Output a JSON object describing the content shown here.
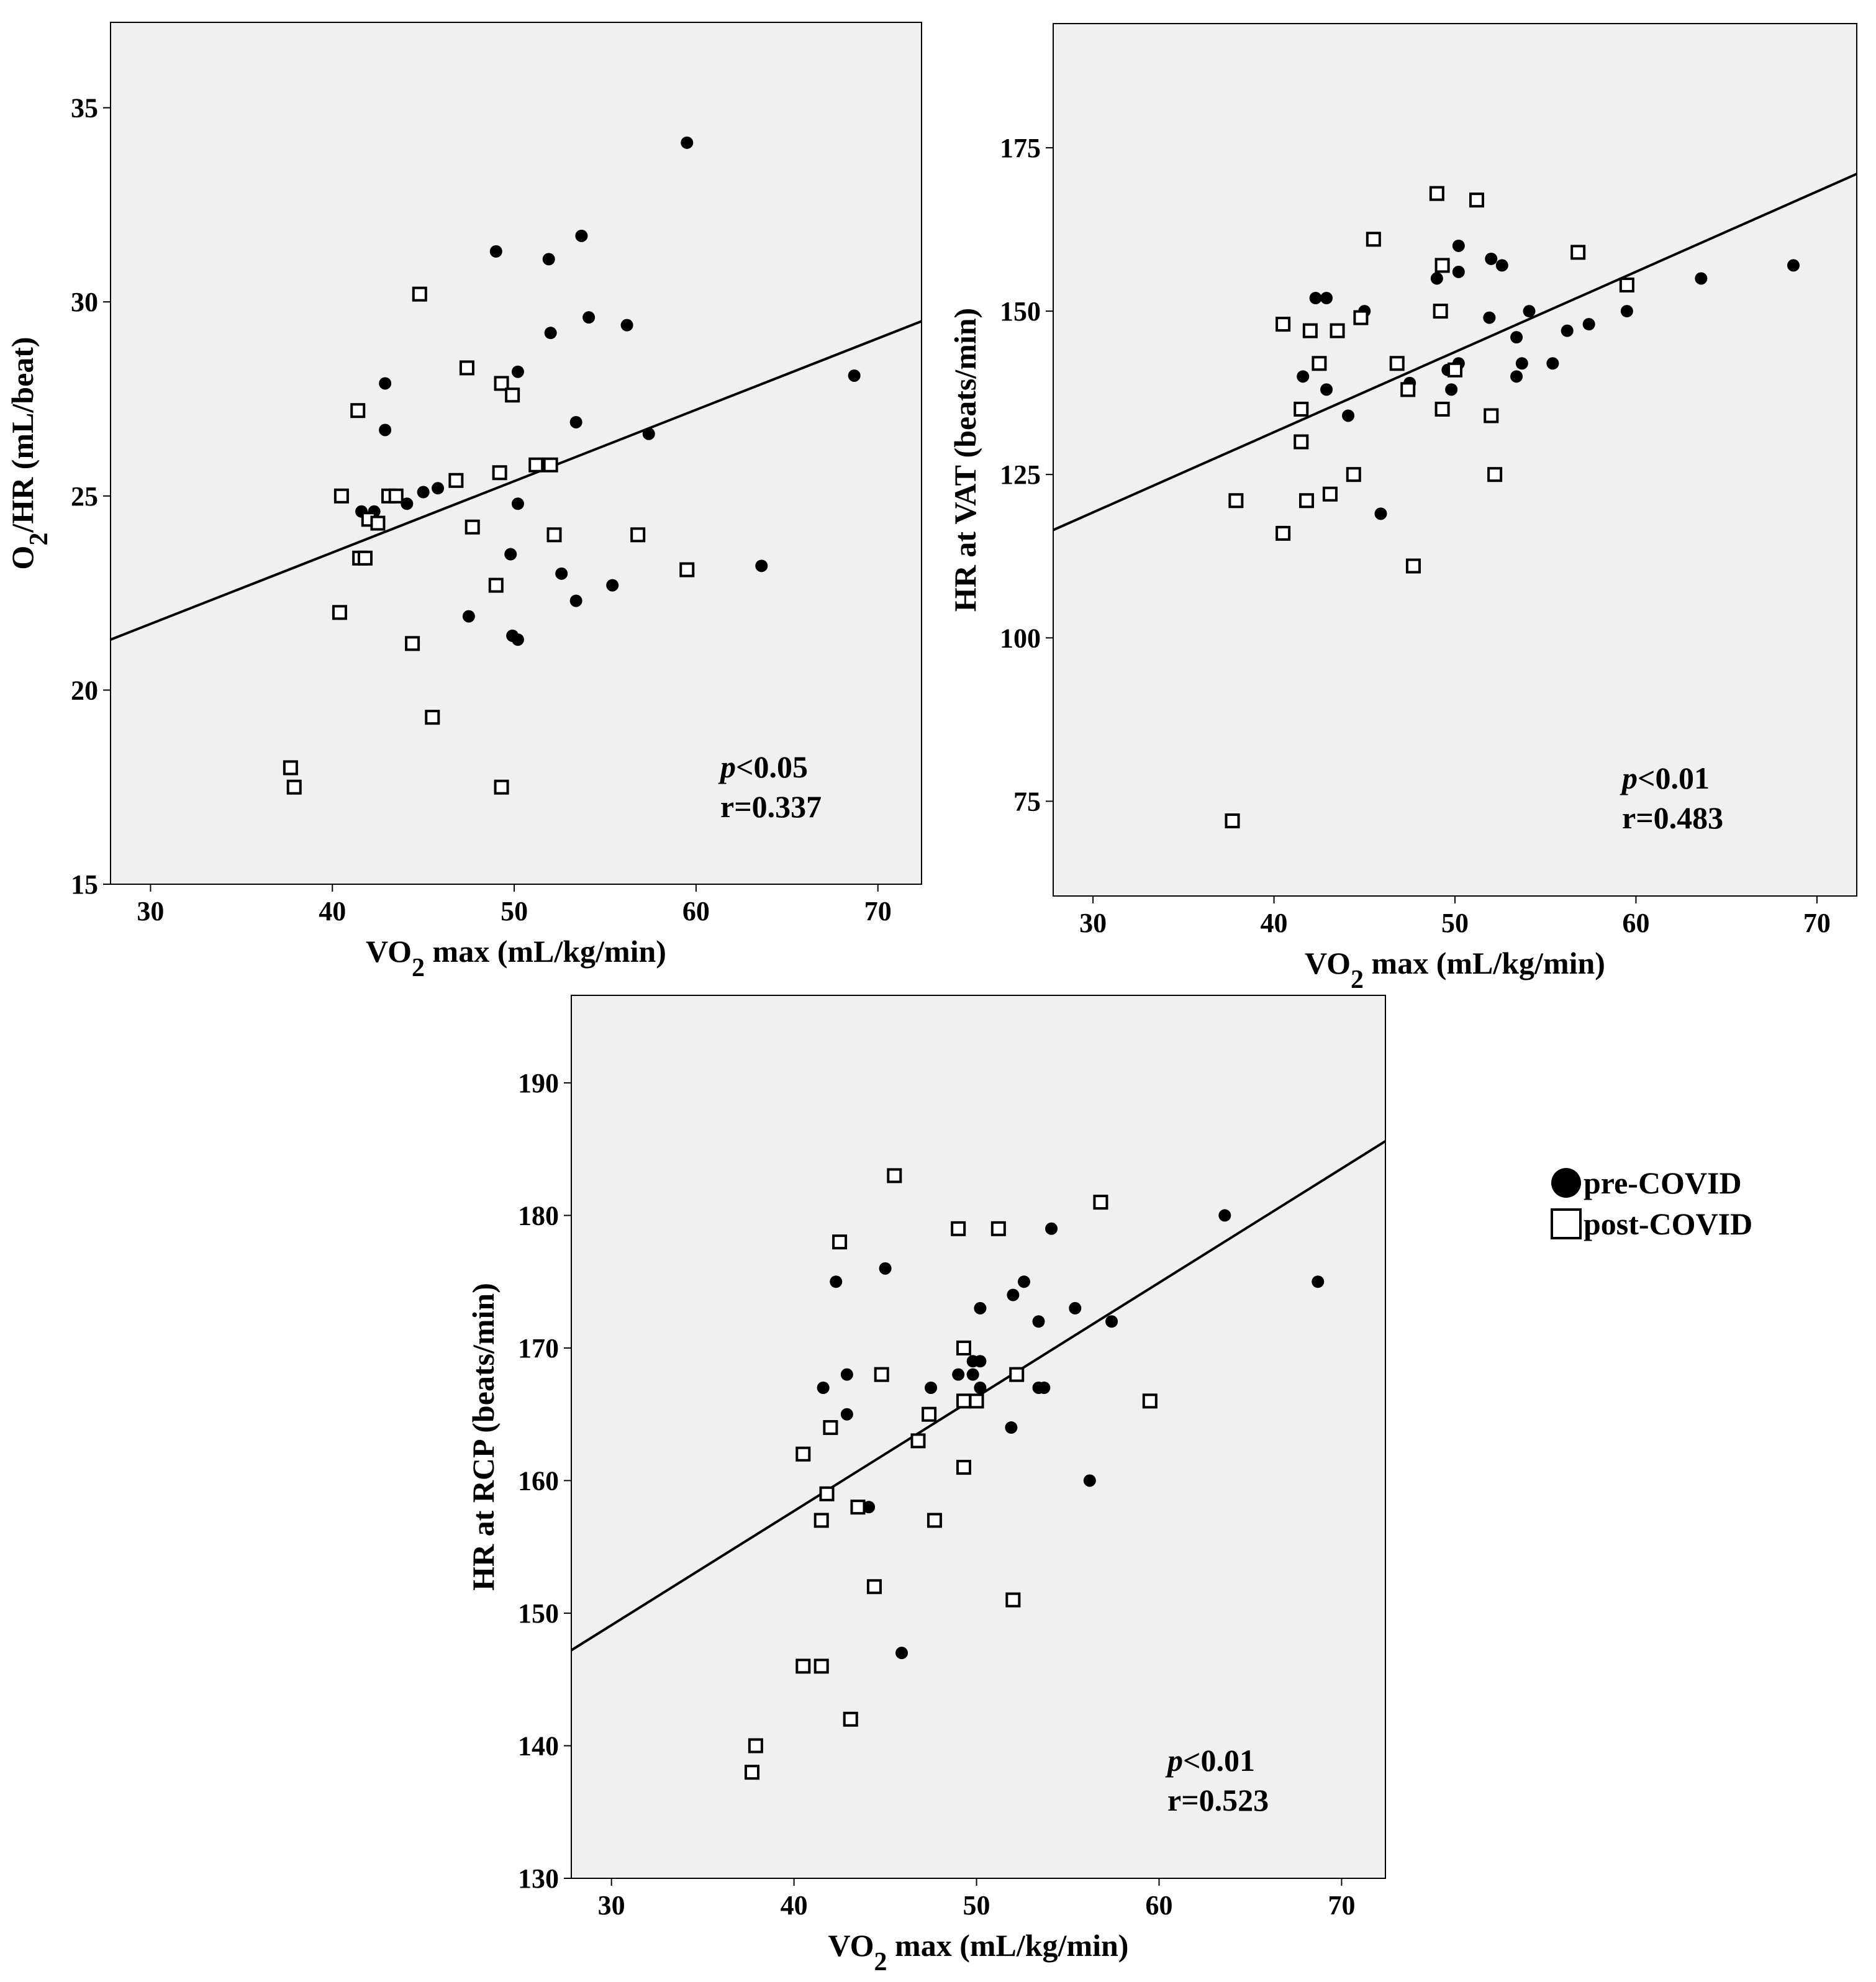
{
  "chart_data": [
    {
      "type": "scatter",
      "panel": "top-left",
      "xlabel": {
        "pre": "VO",
        "sub": "2",
        "post": " max (mL/kg/min)"
      },
      "ylabel": {
        "pre": "O",
        "sub": "2",
        "post": "/HR (mL/beat)"
      },
      "xlim": [
        27.8,
        72.4
      ],
      "ylim": [
        15,
        37.2
      ],
      "xticks": [
        30,
        40,
        50,
        60,
        70
      ],
      "yticks": [
        15,
        20,
        25,
        30,
        35
      ],
      "fit_line": {
        "x": [
          27.8,
          72.4
        ],
        "y": [
          21.3,
          29.5
        ]
      },
      "annotation": {
        "p_italic": "p",
        "p_rest": "<0.05",
        "r": "r=0.337"
      },
      "series": [
        {
          "name": "pre-COVID",
          "marker": "circle",
          "points": [
            [
              59.5,
              34.1
            ],
            [
              53.7,
              31.7
            ],
            [
              49.0,
              31.3
            ],
            [
              51.9,
              31.1
            ],
            [
              54.1,
              29.6
            ],
            [
              56.2,
              29.4
            ],
            [
              52.0,
              29.2
            ],
            [
              50.2,
              28.2
            ],
            [
              68.7,
              28.1
            ],
            [
              42.9,
              27.9
            ],
            [
              53.4,
              26.9
            ],
            [
              42.9,
              26.7
            ],
            [
              57.4,
              26.6
            ],
            [
              45.8,
              25.2
            ],
            [
              45.0,
              25.1
            ],
            [
              44.1,
              24.8
            ],
            [
              50.2,
              24.8
            ],
            [
              41.6,
              24.6
            ],
            [
              42.3,
              24.6
            ],
            [
              49.8,
              23.5
            ],
            [
              63.6,
              23.2
            ],
            [
              52.6,
              23.0
            ],
            [
              55.4,
              22.7
            ],
            [
              53.4,
              22.3
            ],
            [
              47.5,
              21.9
            ],
            [
              49.9,
              21.4
            ],
            [
              50.2,
              21.3
            ]
          ]
        },
        {
          "name": "post-COVID",
          "marker": "square",
          "points": [
            [
              44.8,
              30.2
            ],
            [
              47.4,
              28.3
            ],
            [
              49.3,
              27.9
            ],
            [
              41.4,
              27.2
            ],
            [
              49.9,
              27.6
            ],
            [
              51.2,
              25.8
            ],
            [
              52.0,
              25.8
            ],
            [
              49.2,
              25.6
            ],
            [
              46.8,
              25.4
            ],
            [
              40.5,
              25.0
            ],
            [
              43.1,
              25.0
            ],
            [
              43.5,
              25.0
            ],
            [
              42.0,
              24.4
            ],
            [
              42.5,
              24.3
            ],
            [
              47.7,
              24.2
            ],
            [
              52.2,
              24.0
            ],
            [
              56.8,
              24.0
            ],
            [
              41.5,
              23.4
            ],
            [
              41.8,
              23.4
            ],
            [
              59.5,
              23.1
            ],
            [
              49.0,
              22.7
            ],
            [
              40.4,
              22.0
            ],
            [
              44.4,
              21.2
            ],
            [
              45.5,
              19.3
            ],
            [
              37.7,
              18.0
            ],
            [
              37.9,
              17.5
            ],
            [
              49.3,
              17.5
            ]
          ]
        }
      ]
    },
    {
      "type": "scatter",
      "panel": "top-right",
      "xlabel": {
        "pre": "VO",
        "sub": "2",
        "post": " max (mL/kg/min)"
      },
      "ylabel": {
        "pre": "HR at VAT (beats/min)",
        "sub": "",
        "post": ""
      },
      "xlim": [
        27.8,
        72.2
      ],
      "ylim": [
        60.5,
        194
      ],
      "xticks": [
        30,
        40,
        50,
        60,
        70
      ],
      "yticks": [
        75,
        100,
        125,
        150,
        175
      ],
      "fit_line": {
        "x": [
          27.8,
          72.2
        ],
        "y": [
          116.5,
          171.0
        ]
      },
      "annotation": {
        "p_italic": "p",
        "p_rest": "<0.01",
        "r": "r=0.483"
      },
      "series": [
        {
          "name": "pre-COVID",
          "marker": "circle",
          "points": [
            [
              50.2,
              160
            ],
            [
              52.0,
              158
            ],
            [
              52.6,
              157
            ],
            [
              68.7,
              157
            ],
            [
              50.2,
              156
            ],
            [
              49.0,
              155
            ],
            [
              63.6,
              155
            ],
            [
              42.3,
              152
            ],
            [
              42.9,
              152
            ],
            [
              45.0,
              150
            ],
            [
              54.1,
              150
            ],
            [
              59.5,
              150
            ],
            [
              51.9,
              149
            ],
            [
              57.4,
              148
            ],
            [
              56.2,
              147
            ],
            [
              53.4,
              146
            ],
            [
              50.2,
              142
            ],
            [
              53.7,
              142
            ],
            [
              55.4,
              142
            ],
            [
              49.6,
              141
            ],
            [
              41.6,
              140
            ],
            [
              53.4,
              140
            ],
            [
              47.5,
              139
            ],
            [
              42.9,
              138
            ],
            [
              49.8,
              138
            ],
            [
              44.1,
              134
            ],
            [
              45.9,
              119
            ]
          ]
        },
        {
          "name": "post-COVID",
          "marker": "square",
          "points": [
            [
              49.0,
              168
            ],
            [
              51.2,
              167
            ],
            [
              45.5,
              161
            ],
            [
              56.8,
              159
            ],
            [
              49.3,
              157
            ],
            [
              59.5,
              154
            ],
            [
              49.2,
              150
            ],
            [
              44.8,
              149
            ],
            [
              40.5,
              148
            ],
            [
              42.0,
              147
            ],
            [
              43.5,
              147
            ],
            [
              42.5,
              142
            ],
            [
              46.8,
              142
            ],
            [
              47.4,
              138
            ],
            [
              50.0,
              141
            ],
            [
              41.5,
              135
            ],
            [
              49.3,
              135
            ],
            [
              52.0,
              134
            ],
            [
              41.5,
              130
            ],
            [
              44.4,
              125
            ],
            [
              52.2,
              125
            ],
            [
              43.1,
              122
            ],
            [
              37.9,
              121
            ],
            [
              41.8,
              121
            ],
            [
              40.5,
              116
            ],
            [
              47.7,
              111
            ],
            [
              37.7,
              72
            ]
          ]
        }
      ]
    },
    {
      "type": "scatter",
      "panel": "bottom",
      "xlabel": {
        "pre": "VO",
        "sub": "2",
        "post": " max (mL/kg/min)"
      },
      "ylabel": {
        "pre": "HR at RCP (beats/min)",
        "sub": "",
        "post": ""
      },
      "xlim": [
        27.8,
        72.4
      ],
      "ylim": [
        130,
        196.6
      ],
      "xticks": [
        30,
        40,
        50,
        60,
        70
      ],
      "yticks": [
        130,
        140,
        150,
        160,
        170,
        180,
        190
      ],
      "fit_line": {
        "x": [
          27.8,
          72.4
        ],
        "y": [
          147.2,
          185.6
        ]
      },
      "annotation": {
        "p_italic": "p",
        "p_rest": "<0.01",
        "r": "r=0.523"
      },
      "series": [
        {
          "name": "pre-COVID",
          "marker": "circle",
          "points": [
            [
              63.6,
              180
            ],
            [
              54.1,
              179
            ],
            [
              45.0,
              176
            ],
            [
              42.3,
              175
            ],
            [
              52.6,
              175
            ],
            [
              68.7,
              175
            ],
            [
              52.0,
              174
            ],
            [
              50.2,
              173
            ],
            [
              55.4,
              173
            ],
            [
              53.4,
              172
            ],
            [
              57.4,
              172
            ],
            [
              49.8,
              169
            ],
            [
              50.2,
              169
            ],
            [
              42.9,
              168
            ],
            [
              49.0,
              168
            ],
            [
              49.8,
              168
            ],
            [
              41.6,
              167
            ],
            [
              47.5,
              167
            ],
            [
              50.2,
              167
            ],
            [
              53.4,
              167
            ],
            [
              53.7,
              167
            ],
            [
              42.9,
              165
            ],
            [
              51.9,
              164
            ],
            [
              56.2,
              160
            ],
            [
              44.1,
              158
            ],
            [
              45.9,
              147
            ]
          ]
        },
        {
          "name": "post-COVID",
          "marker": "square",
          "points": [
            [
              45.5,
              183
            ],
            [
              56.8,
              181
            ],
            [
              49.0,
              179
            ],
            [
              51.2,
              179
            ],
            [
              42.5,
              178
            ],
            [
              49.3,
              170
            ],
            [
              44.8,
              168
            ],
            [
              52.2,
              168
            ],
            [
              49.3,
              166
            ],
            [
              50.0,
              166
            ],
            [
              59.5,
              166
            ],
            [
              47.4,
              165
            ],
            [
              42.0,
              164
            ],
            [
              46.8,
              163
            ],
            [
              40.5,
              162
            ],
            [
              49.3,
              161
            ],
            [
              41.8,
              159
            ],
            [
              43.5,
              158
            ],
            [
              41.5,
              157
            ],
            [
              47.7,
              157
            ],
            [
              44.4,
              152
            ],
            [
              52.0,
              151
            ],
            [
              40.5,
              146
            ],
            [
              41.5,
              146
            ],
            [
              43.1,
              142
            ],
            [
              37.9,
              140
            ],
            [
              37.7,
              138
            ]
          ]
        }
      ]
    }
  ],
  "legend": {
    "items": [
      {
        "label": "pre-COVID",
        "marker": "circle"
      },
      {
        "label": "post-COVID",
        "marker": "square"
      }
    ]
  },
  "colors": {
    "plot_background": "#f0f0f0",
    "ink": "#000000",
    "page": "#ffffff"
  }
}
